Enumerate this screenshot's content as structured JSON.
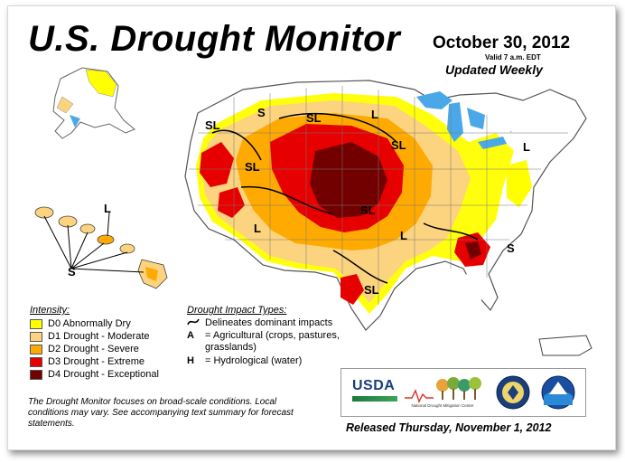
{
  "header": {
    "title": "U.S. Drought Monitor",
    "date": "October 30, 2012",
    "valid": "Valid 7 a.m. EDT",
    "updated": "Updated Weekly"
  },
  "legend": {
    "title": "Intensity:",
    "items": [
      {
        "label": "D0 Abnormally Dry",
        "color": "#ffff00"
      },
      {
        "label": "D1 Drought - Moderate",
        "color": "#fcd37f"
      },
      {
        "label": "D2 Drought - Severe",
        "color": "#ffaa00"
      },
      {
        "label": "D3 Drought - Extreme",
        "color": "#e60000"
      },
      {
        "label": "D4 Drought - Exceptional",
        "color": "#730000"
      }
    ]
  },
  "impact": {
    "title": "Drought Impact Types:",
    "line_label": "Delineates dominant impacts",
    "ag_code": "A",
    "ag_text": "= Agricultural (crops, pastures, grasslands)",
    "hyd_code": "H",
    "hyd_text": "= Hydrological (water)"
  },
  "map_labels": {
    "sl": "SL",
    "l": "L",
    "s": "S"
  },
  "footer": {
    "note": "The Drought Monitor focuses on broad-scale conditions. Local conditions may vary. See accompanying text summary for forecast statements.",
    "released": "Released Thursday, November 1, 2012"
  },
  "logos": {
    "usda": "USDA",
    "ndmc": "National Drought Mitigation Center"
  },
  "colors": {
    "water": "#4aa8e8",
    "land": "#ffffff",
    "boundary": "#888888"
  }
}
